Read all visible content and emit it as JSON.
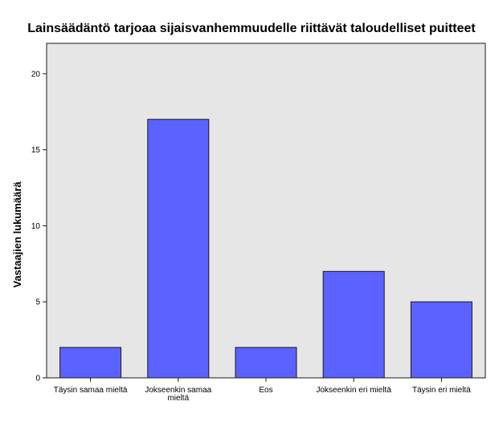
{
  "chart_data": {
    "type": "bar",
    "title": "Lainsäädäntö tarjoaa sijaisvanhemmuudelle riittävät taloudelliset puitteet",
    "xlabel": "",
    "ylabel": "Vastaajien lukumäärä",
    "categories": [
      [
        "Täysin samaa mieltä"
      ],
      [
        "Jokseenkin samaa",
        "mieltä"
      ],
      [
        "Eos"
      ],
      [
        "Jokseenkin eri mieltä"
      ],
      [
        "Täysin eri mieltä"
      ]
    ],
    "values": [
      2,
      17,
      2,
      7,
      5
    ],
    "ylim": [
      0,
      22
    ],
    "yticks": [
      "0",
      "5",
      "10",
      "15",
      "20"
    ],
    "grid": false,
    "colors": {
      "bar_fill": "#5c62ff",
      "bar_stroke": "#1a1a1a",
      "plot_background": "#e6e6e6",
      "plot_border": "#1a1a1a"
    }
  }
}
